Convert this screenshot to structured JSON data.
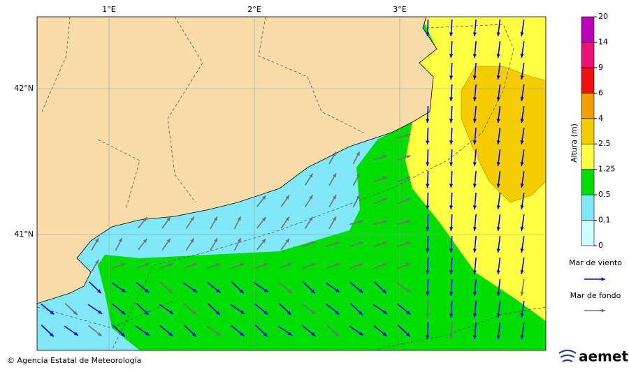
{
  "map": {
    "lon_labels": [
      "1°E",
      "2°E",
      "3°E"
    ],
    "lat_labels": [
      "42°N",
      "41°N"
    ]
  },
  "colorbar": {
    "label": "Altura (m)",
    "ticks": [
      0,
      0.1,
      0.5,
      1.25,
      2.5,
      4,
      6,
      9,
      14,
      20
    ],
    "colors": [
      "#ccffff",
      "#80e8f8",
      "#00dd00",
      "#ffff44",
      "#f5cc00",
      "#f0a000",
      "#ee1111",
      "#ee1177",
      "#bb00bb"
    ]
  },
  "legend": {
    "wind_sea": "Mar de viento",
    "swell": "Mar de fondo",
    "wind_color": "#0000ee",
    "swell_color": "#707070"
  },
  "footer": {
    "credit": "© Agencia Estatal de Meteorología",
    "logo": "aemet"
  }
}
